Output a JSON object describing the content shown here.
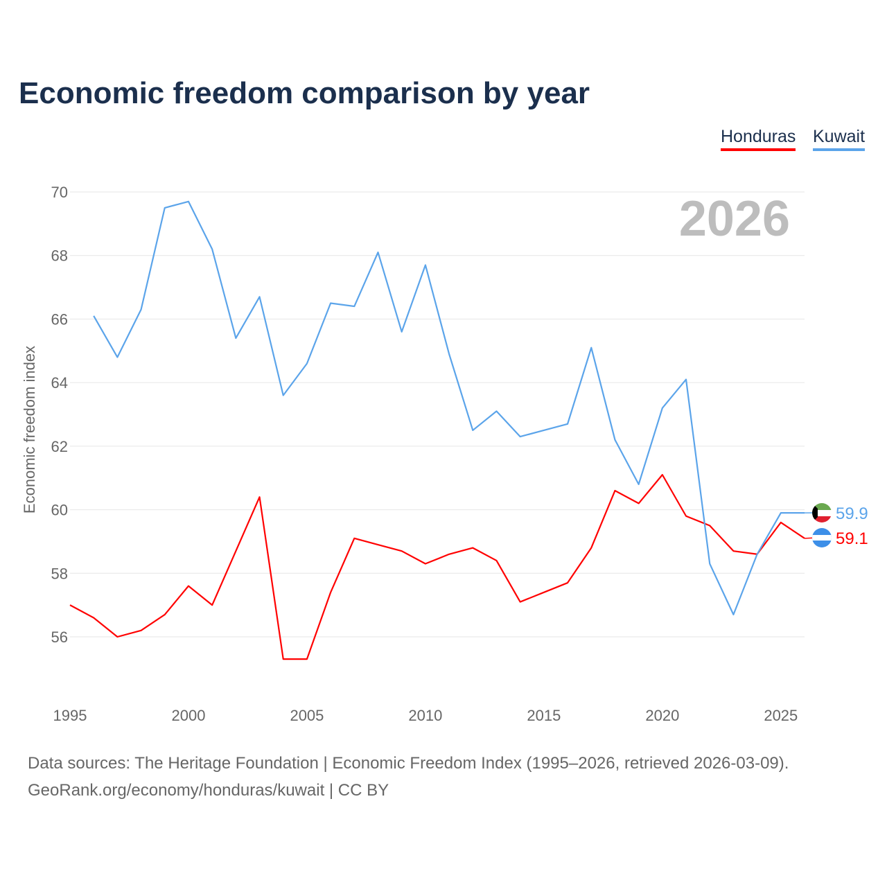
{
  "title": "Economic freedom comparison by year",
  "legend": [
    "Honduras",
    "Kuwait"
  ],
  "footer": {
    "line1": "Data sources: The Heritage Foundation | Economic Freedom Index (1995–2026, retrieved 2026-03-09).",
    "line2": "GeoRank.org/economy/honduras/kuwait | CC BY"
  },
  "chart_data": {
    "type": "line",
    "title": "Economic freedom comparison by year",
    "ylabel": "Economic freedom index",
    "xlabel": "",
    "year_label": "2026",
    "ylim": [
      54,
      70
    ],
    "xlim": [
      1995,
      2026
    ],
    "yticks": [
      56,
      58,
      60,
      62,
      64,
      66,
      68,
      70
    ],
    "xticks": [
      1995,
      2000,
      2005,
      2010,
      2015,
      2020,
      2025
    ],
    "grid": true,
    "legend_position": "top-right",
    "series": [
      {
        "name": "Honduras",
        "color": "#ff0000",
        "end_label": "59.1",
        "x": [
          1995,
          1996,
          1997,
          1998,
          1999,
          2000,
          2001,
          2002,
          2003,
          2004,
          2005,
          2006,
          2007,
          2008,
          2009,
          2010,
          2011,
          2012,
          2013,
          2014,
          2015,
          2016,
          2017,
          2018,
          2019,
          2020,
          2021,
          2022,
          2023,
          2024,
          2025,
          2026
        ],
        "values": [
          57.0,
          56.6,
          56.0,
          56.2,
          56.7,
          57.6,
          57.0,
          58.7,
          60.4,
          55.3,
          55.3,
          57.4,
          59.1,
          58.9,
          58.7,
          58.3,
          58.6,
          58.8,
          58.4,
          57.1,
          57.4,
          57.7,
          58.8,
          60.6,
          60.2,
          61.1,
          59.8,
          59.5,
          58.7,
          58.6,
          59.6,
          59.1
        ]
      },
      {
        "name": "Kuwait",
        "color": "#5ba4ea",
        "end_label": "59.9",
        "x": [
          1996,
          1997,
          1998,
          1999,
          2000,
          2001,
          2002,
          2003,
          2004,
          2005,
          2006,
          2007,
          2008,
          2009,
          2010,
          2011,
          2012,
          2013,
          2014,
          2015,
          2016,
          2017,
          2018,
          2019,
          2020,
          2021,
          2022,
          2023,
          2024,
          2025,
          2026
        ],
        "values": [
          66.1,
          64.8,
          66.3,
          69.5,
          69.7,
          68.2,
          65.4,
          66.7,
          63.6,
          64.6,
          66.5,
          66.4,
          68.1,
          65.6,
          67.7,
          64.9,
          62.5,
          63.1,
          62.3,
          62.5,
          62.7,
          65.1,
          62.2,
          60.8,
          63.2,
          64.1,
          58.3,
          56.7,
          58.6,
          59.9,
          59.9
        ]
      }
    ]
  }
}
